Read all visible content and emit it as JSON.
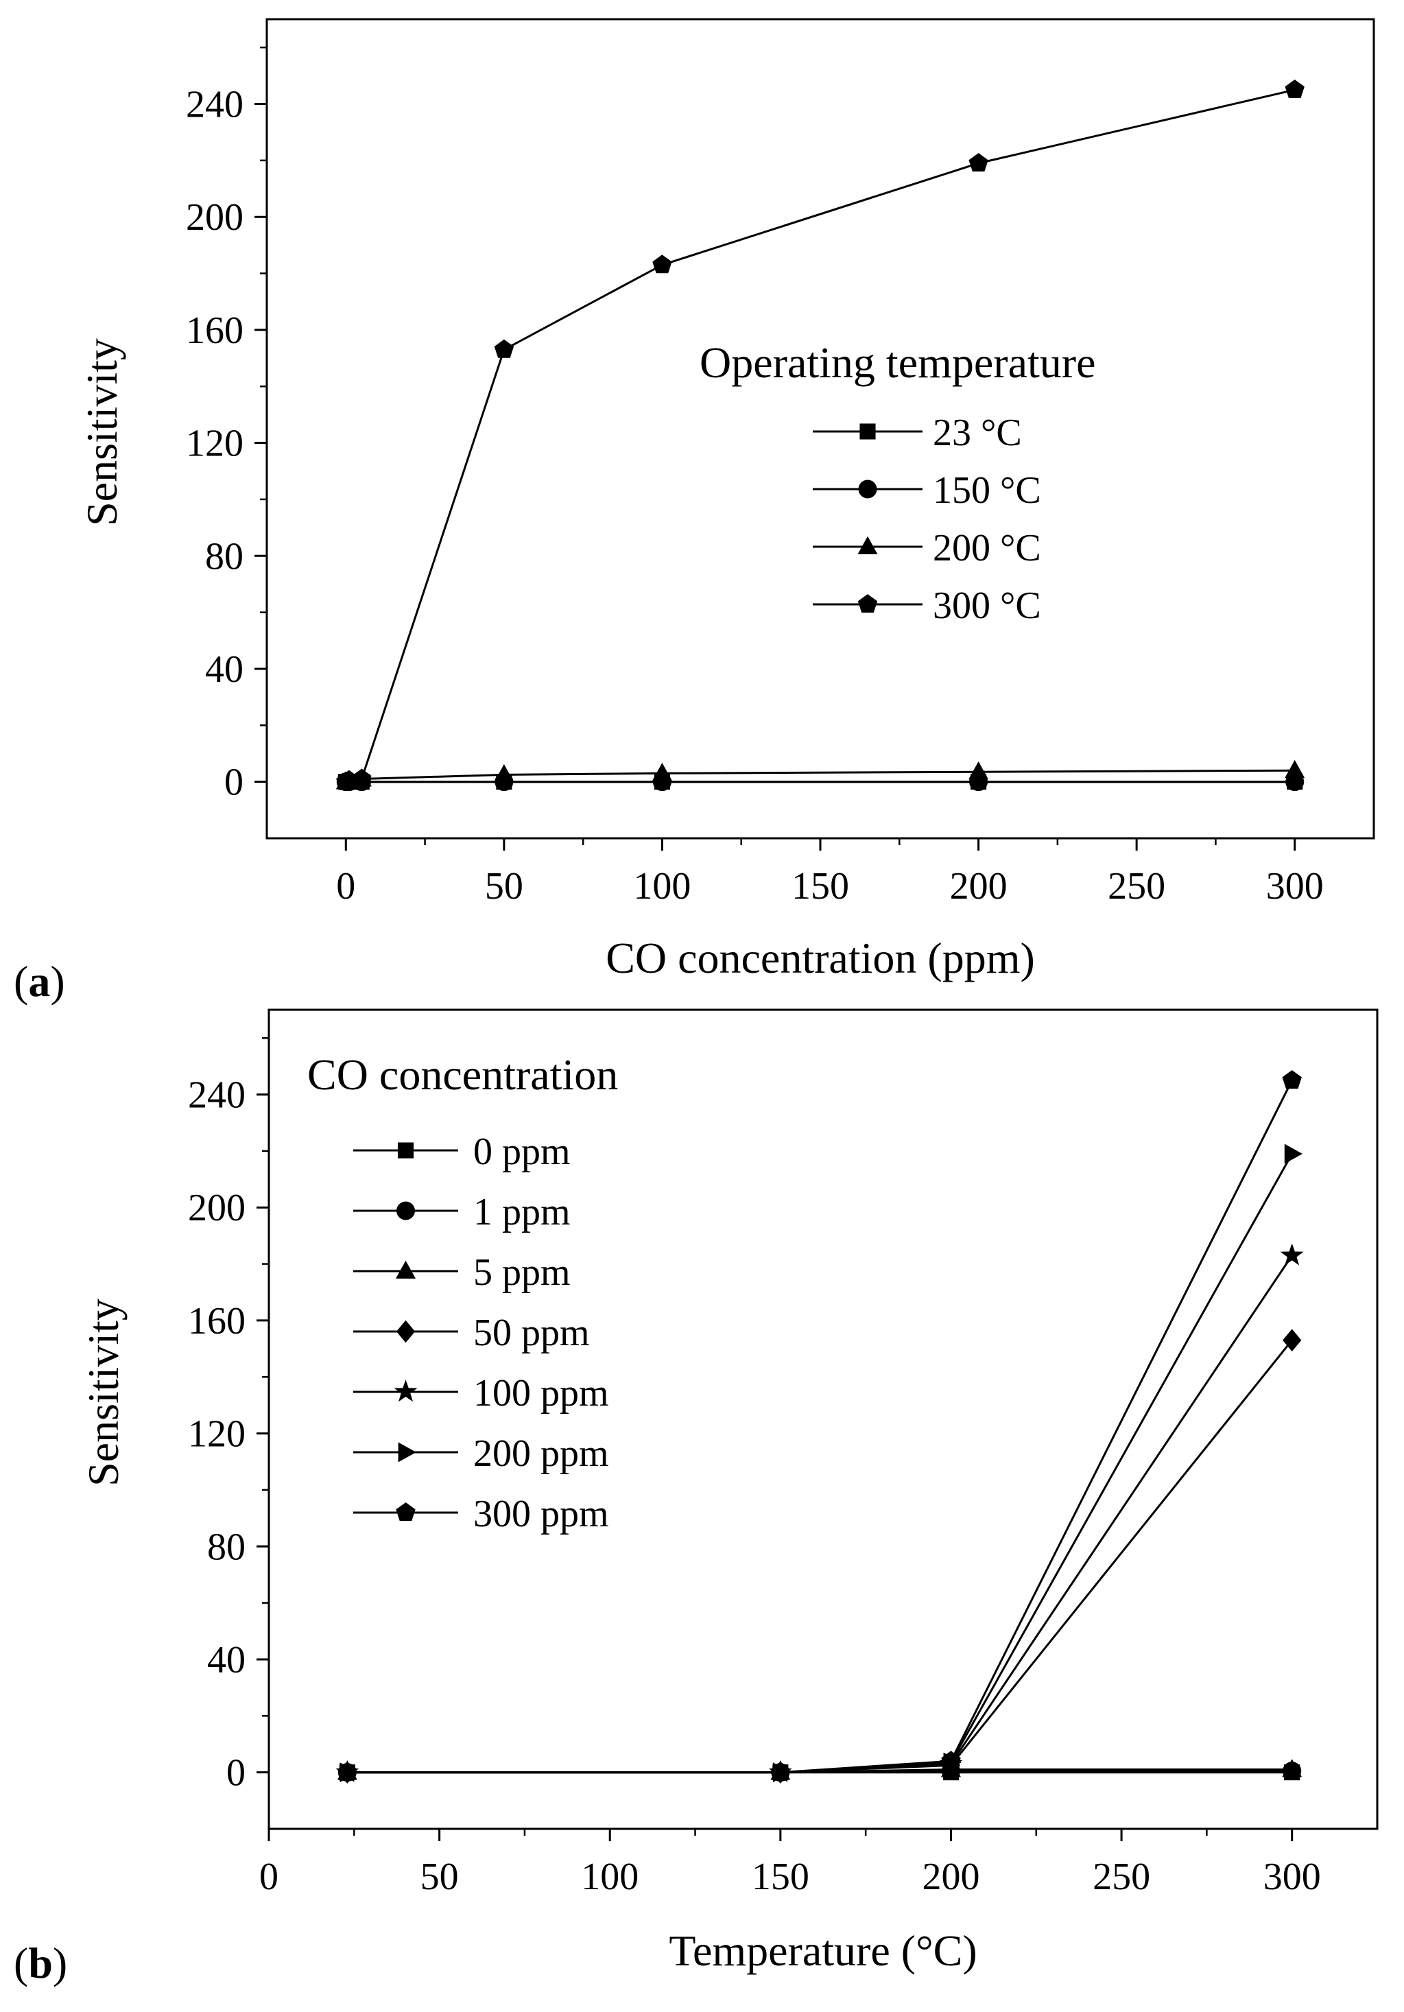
{
  "chart_data": [
    {
      "type": "line",
      "panel_label": "(a)",
      "panel_letter": "a",
      "xlabel": "CO concentration (ppm)",
      "ylabel": "Sensitivity",
      "xlim": [
        -25,
        325
      ],
      "ylim": [
        -20,
        270
      ],
      "xticks": [
        0,
        50,
        100,
        150,
        200,
        250,
        300
      ],
      "yticks": [
        0,
        40,
        80,
        120,
        160,
        200,
        240
      ],
      "x": [
        0,
        1,
        5,
        50,
        100,
        200,
        300
      ],
      "legend_title": "Operating temperature",
      "legend_position": "center-right",
      "series": [
        {
          "name": "23 °C",
          "marker": "square",
          "values": [
            0,
            0,
            0,
            0,
            0,
            0,
            0
          ]
        },
        {
          "name": "150 °C",
          "marker": "circle",
          "values": [
            0,
            0,
            0,
            0,
            0,
            0,
            0
          ]
        },
        {
          "name": "200 °C",
          "marker": "triangle",
          "values": [
            0,
            0.5,
            1,
            2.5,
            3,
            3.5,
            4
          ]
        },
        {
          "name": "300 °C",
          "marker": "pentagon",
          "values": [
            0,
            0.5,
            1,
            153,
            183,
            219,
            245
          ]
        }
      ]
    },
    {
      "type": "line",
      "panel_label": "(b)",
      "panel_letter": "b",
      "xlabel": "Temperature (°C)",
      "ylabel": "Sensitivity",
      "xlim": [
        0,
        325
      ],
      "ylim": [
        -20,
        270
      ],
      "xticks": [
        0,
        50,
        100,
        150,
        200,
        250,
        300
      ],
      "yticks": [
        0,
        40,
        80,
        120,
        160,
        200,
        240
      ],
      "x": [
        23,
        150,
        200,
        300
      ],
      "legend_title": "CO concentration",
      "legend_position": "top-left",
      "series": [
        {
          "name": "0 ppm",
          "marker": "square",
          "values": [
            0,
            0,
            0,
            0
          ]
        },
        {
          "name": "1 ppm",
          "marker": "circle",
          "values": [
            0,
            0,
            0.5,
            0.5
          ]
        },
        {
          "name": "5 ppm",
          "marker": "triangle",
          "values": [
            0,
            0,
            1,
            1
          ]
        },
        {
          "name": "50 ppm",
          "marker": "diamond",
          "values": [
            0,
            0,
            2.5,
            153
          ]
        },
        {
          "name": "100 ppm",
          "marker": "star",
          "values": [
            0,
            0,
            3,
            183
          ]
        },
        {
          "name": "200 ppm",
          "marker": "right-triangle",
          "values": [
            0,
            0,
            3.5,
            219
          ]
        },
        {
          "name": "300 ppm",
          "marker": "pentagon",
          "values": [
            0,
            0,
            4,
            245
          ]
        }
      ]
    }
  ]
}
